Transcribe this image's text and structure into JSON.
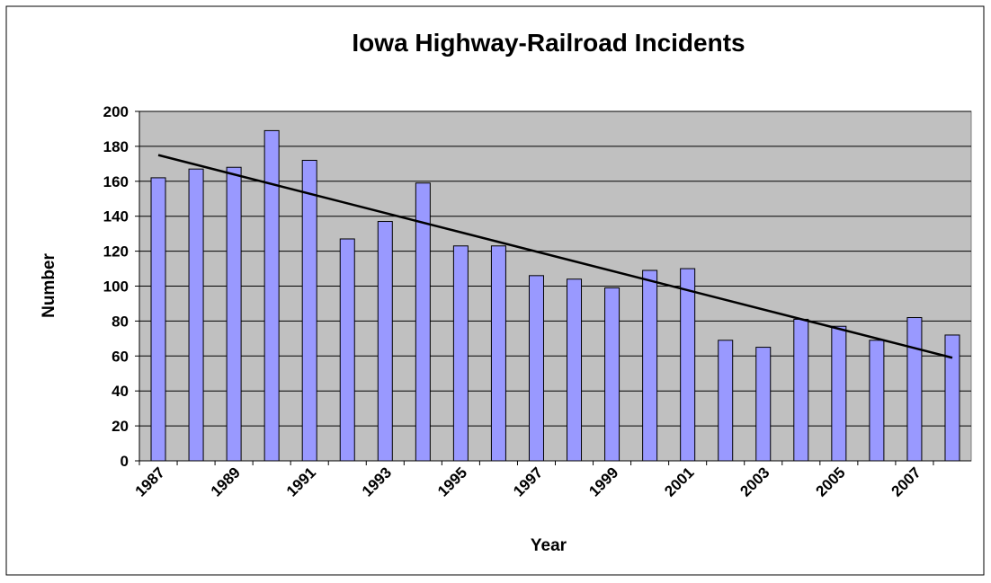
{
  "chart_data": {
    "type": "bar",
    "title": "Iowa Highway-Railroad Incidents",
    "x_label": "Year",
    "y_label": "Number",
    "categories": [
      "1987",
      null,
      "1989",
      null,
      "1991",
      null,
      "1993",
      null,
      "1995",
      null,
      "1997",
      null,
      "1999",
      null,
      "2001",
      null,
      "2003",
      null,
      "2005",
      null,
      "2007",
      null
    ],
    "values": [
      162,
      167,
      168,
      189,
      172,
      127,
      137,
      159,
      123,
      123,
      106,
      104,
      99,
      109,
      110,
      69,
      65,
      81,
      77,
      69,
      82,
      72
    ],
    "color": "#9999ff",
    "trendline": [
      175,
      59
    ],
    "ylim": [
      0,
      200
    ],
    "yticks": [
      0,
      20,
      40,
      60,
      80,
      100,
      120,
      140,
      160,
      180,
      200
    ],
    "grid": true
  }
}
